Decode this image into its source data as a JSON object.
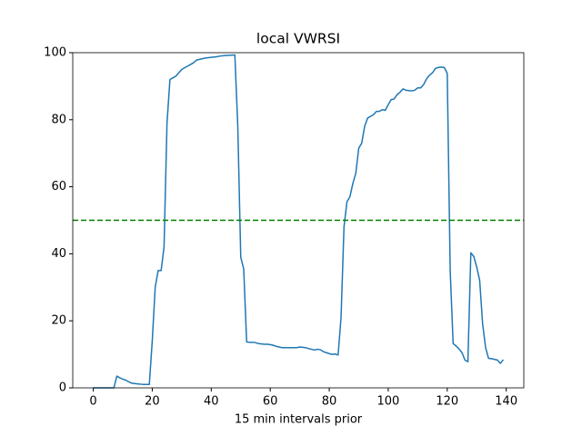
{
  "chart_data": {
    "type": "line",
    "title": "local VWRSI",
    "x_label": "15 min intervals prior",
    "x": [
      0,
      1,
      2,
      3,
      4,
      5,
      6,
      7,
      8,
      9,
      10,
      11,
      12,
      13,
      14,
      15,
      16,
      17,
      18,
      19,
      20,
      21,
      22,
      23,
      24,
      25,
      26,
      27,
      28,
      29,
      30,
      31,
      32,
      33,
      34,
      35,
      36,
      37,
      38,
      39,
      40,
      41,
      42,
      43,
      44,
      45,
      46,
      47,
      48,
      49,
      50,
      51,
      52,
      53,
      54,
      55,
      56,
      57,
      58,
      59,
      60,
      61,
      62,
      63,
      64,
      65,
      66,
      67,
      68,
      69,
      70,
      71,
      72,
      73,
      74,
      75,
      76,
      77,
      78,
      79,
      80,
      81,
      82,
      83,
      84,
      85,
      86,
      87,
      88,
      89,
      90,
      91,
      92,
      93,
      94,
      95,
      96,
      97,
      98,
      99,
      100,
      101,
      102,
      103,
      104,
      105,
      106,
      107,
      108,
      109,
      110,
      111,
      112,
      113,
      114,
      115,
      116,
      117,
      118,
      119,
      120,
      121,
      122,
      123,
      124,
      125,
      126,
      127,
      128,
      129,
      130,
      131,
      132,
      133,
      134,
      135,
      136,
      137,
      138,
      139
    ],
    "series": [
      {
        "color": "#1f77b4",
        "values": [
          0,
          0,
          0,
          0,
          0,
          0,
          0,
          0,
          3.5,
          3.0,
          2.6,
          2.3,
          1.8,
          1.4,
          1.3,
          1.2,
          1.1,
          1.0,
          1.0,
          1.0,
          14,
          30,
          35,
          35,
          42,
          79,
          92,
          92.5,
          93,
          94,
          95,
          95.5,
          96,
          96.5,
          97,
          97.8,
          98,
          98.2,
          98.4,
          98.5,
          98.6,
          98.7,
          98.8,
          99,
          99.1,
          99.2,
          99.2,
          99.3,
          99.3,
          78,
          39,
          35.5,
          13.7,
          13.6,
          13.6,
          13.5,
          13.2,
          13.1,
          13.0,
          13.0,
          12.9,
          12.7,
          12.4,
          12.2,
          12.0,
          12.0,
          12.0,
          12.0,
          12.0,
          12.0,
          12.2,
          12.1,
          12.0,
          11.7,
          11.5,
          11.3,
          11.5,
          11.4,
          10.8,
          10.5,
          10.2,
          10.0,
          10.1,
          9.8,
          21,
          48,
          55.5,
          57,
          61,
          64,
          71.5,
          73,
          78,
          80.5,
          81,
          81.5,
          82.5,
          82.5,
          83,
          82.8,
          84.5,
          86,
          86.2,
          87.5,
          88.2,
          89.2,
          88.8,
          88.7,
          88.6,
          88.8,
          89.5,
          89.5,
          90.5,
          92.2,
          93.3,
          94,
          95.3,
          95.6,
          95.7,
          95.6,
          93.8,
          35,
          13.2,
          12.5,
          11.6,
          10.5,
          8.3,
          7.8,
          40.3,
          39.2,
          36,
          32,
          19,
          12,
          8.8,
          8.7,
          8.5,
          8.3,
          7.3,
          8.4
        ]
      }
    ],
    "threshold": {
      "value": 50,
      "color": "#008000",
      "dashed": true
    },
    "xlim": [
      -6.95,
      145.95
    ],
    "xticks": [
      0,
      20,
      40,
      60,
      80,
      100,
      120,
      140
    ],
    "ylim": [
      0,
      100
    ],
    "yticks": [
      0,
      20,
      40,
      60,
      80,
      100
    ]
  }
}
